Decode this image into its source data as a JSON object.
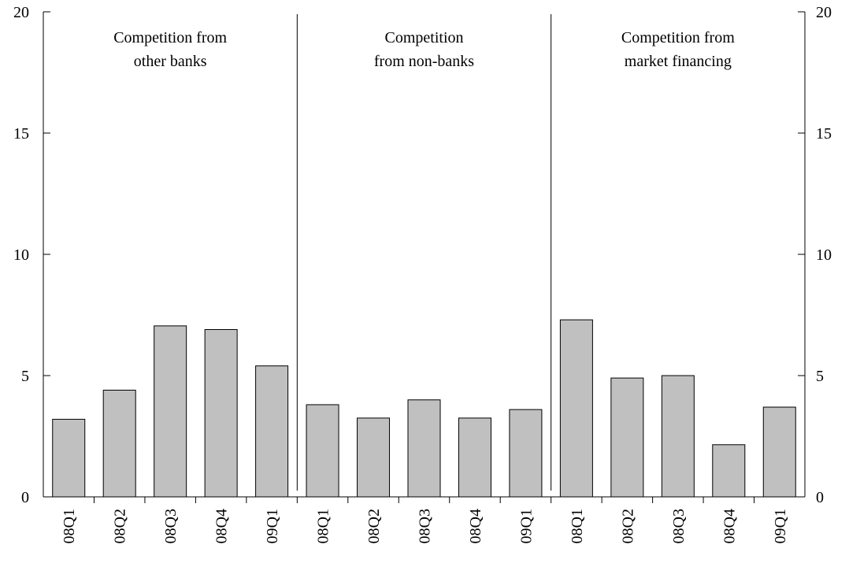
{
  "chart_data": {
    "type": "bar",
    "ylim": [
      0,
      20
    ],
    "yticks": [
      "0",
      "5",
      "10",
      "15",
      "20"
    ],
    "grid": false,
    "bar_color": "#c0c0c0",
    "groups": [
      {
        "title_lines": [
          "Competition from",
          "other banks"
        ],
        "categories": [
          "08Q1",
          "08Q2",
          "08Q3",
          "08Q4",
          "09Q1"
        ],
        "values": [
          3.2,
          4.4,
          7.05,
          6.9,
          5.4
        ]
      },
      {
        "title_lines": [
          "Competition",
          "from non-banks"
        ],
        "categories": [
          "08Q1",
          "08Q2",
          "08Q3",
          "08Q4",
          "09Q1"
        ],
        "values": [
          3.8,
          3.25,
          4.0,
          3.25,
          3.6
        ]
      },
      {
        "title_lines": [
          "Competition from",
          "market financing"
        ],
        "categories": [
          "08Q1",
          "08Q2",
          "08Q3",
          "08Q4",
          "09Q1"
        ],
        "values": [
          7.3,
          4.9,
          5.0,
          2.15,
          3.7
        ]
      }
    ]
  }
}
